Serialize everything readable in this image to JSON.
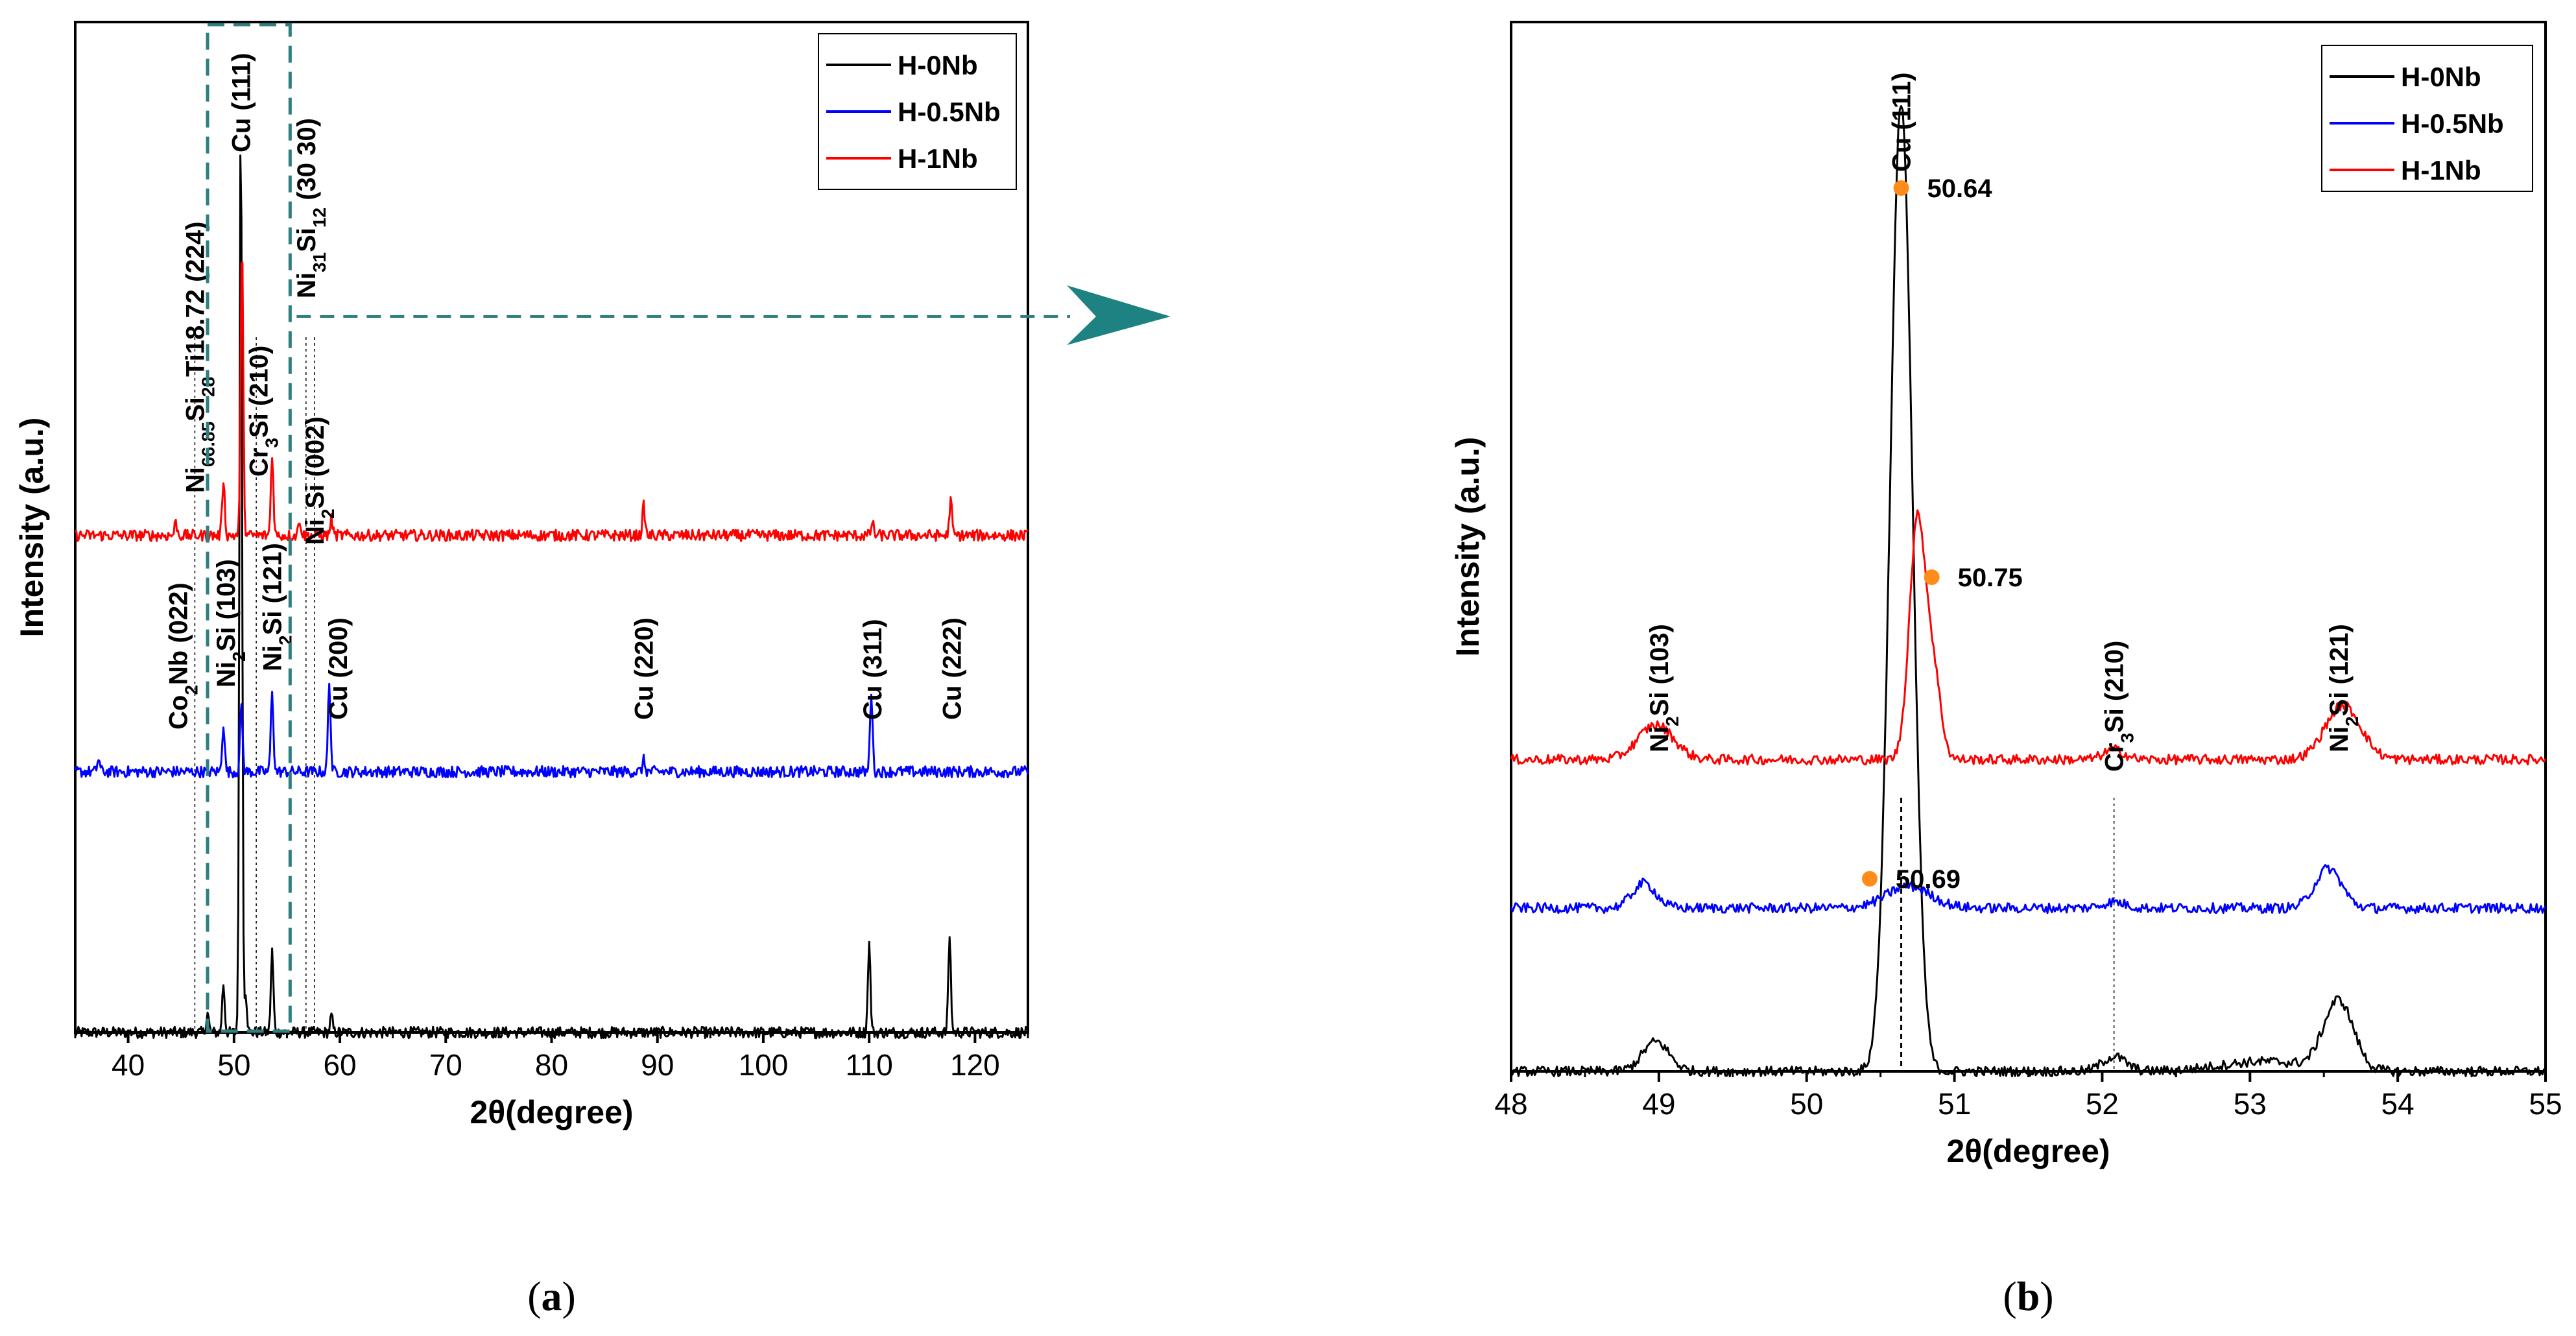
{
  "chart_data": [
    {
      "type": "line",
      "panel_label_parts": [
        "(",
        "a",
        ")"
      ],
      "xlabel": "2θ(degree)",
      "ylabel": "Intensity (a.u.)",
      "xlim": [
        35,
        125
      ],
      "xticks": [
        40,
        50,
        60,
        70,
        80,
        90,
        100,
        110,
        120
      ],
      "legend": {
        "position": "top-right",
        "entries": [
          "H-0Nb",
          "H-0.5Nb",
          "H-1Nb"
        ]
      },
      "colors": {
        "H-0Nb": "#000000",
        "H-0.5Nb": "#0000ff",
        "H-1Nb": "#ff0000"
      },
      "series": [
        {
          "name": "H-0Nb",
          "baseline": 0.0,
          "peaks": [
            [
              47.5,
              1.2
            ],
            [
              49.0,
              3.0
            ],
            [
              50.64,
              57.0
            ],
            [
              51.1,
              2.5
            ],
            [
              53.6,
              5.0
            ],
            [
              59.2,
              1.0
            ],
            [
              110.0,
              5.5
            ],
            [
              117.6,
              6.0
            ]
          ]
        },
        {
          "name": "H-0.5Nb",
          "baseline": 16.0,
          "peaks": [
            [
              37.2,
              0.8
            ],
            [
              49.0,
              3.0
            ],
            [
              50.69,
              4.0
            ],
            [
              53.6,
              5.0
            ],
            [
              59.0,
              5.5
            ],
            [
              88.7,
              0.7
            ],
            [
              110.2,
              5.0
            ]
          ]
        },
        {
          "name": "H-1Nb",
          "baseline": 30.5,
          "peaks": [
            [
              44.5,
              0.8
            ],
            [
              49.0,
              3.5
            ],
            [
              50.75,
              18.0
            ],
            [
              53.6,
              5.0
            ],
            [
              56.2,
              1.0
            ],
            [
              59.2,
              1.0
            ],
            [
              88.7,
              1.8
            ],
            [
              110.3,
              0.8
            ],
            [
              117.7,
              2.2
            ]
          ]
        }
      ],
      "annotations": [
        {
          "x": 44.7,
          "parts": [
            [
              "Co",
              "n"
            ],
            [
              "2",
              "sub"
            ],
            [
              "Nb (022)",
              "n"
            ]
          ]
        },
        {
          "x": 46.3,
          "parts": [
            [
              "Ni",
              "n"
            ],
            [
              "66.85",
              "sub"
            ],
            [
              "Si",
              "n"
            ],
            [
              "28",
              "sub"
            ],
            [
              "Ti18.72 (224)",
              "n"
            ]
          ]
        },
        {
          "x": 49.2,
          "parts": [
            [
              "Ni",
              "n"
            ],
            [
              "2",
              "sub"
            ],
            [
              "Si (103)",
              "n"
            ]
          ]
        },
        {
          "x": 50.64,
          "parts": [
            [
              "Cu (111)",
              "n"
            ]
          ]
        },
        {
          "x": 52.3,
          "parts": [
            [
              "Cr",
              "n"
            ],
            [
              "3",
              "sub"
            ],
            [
              "Si (210)",
              "n"
            ]
          ]
        },
        {
          "x": 53.6,
          "parts": [
            [
              "Ni",
              "n"
            ],
            [
              "2",
              "sub"
            ],
            [
              "Si (121)",
              "n"
            ]
          ]
        },
        {
          "x": 56.8,
          "parts": [
            [
              "Ni",
              "n"
            ],
            [
              "31",
              "sub"
            ],
            [
              "Si",
              "n"
            ],
            [
              "12",
              "sub"
            ],
            [
              " (30 30)",
              "n"
            ]
          ]
        },
        {
          "x": 57.6,
          "parts": [
            [
              "Ni",
              "n"
            ],
            [
              "2",
              "sub"
            ],
            [
              "Si (002)",
              "n"
            ]
          ]
        },
        {
          "x": 59.8,
          "parts": [
            [
              "Cu (200)",
              "n"
            ]
          ]
        },
        {
          "x": 88.7,
          "parts": [
            [
              "Cu (220)",
              "n"
            ]
          ]
        },
        {
          "x": 110.3,
          "parts": [
            [
              "Cu (311)",
              "n"
            ]
          ]
        },
        {
          "x": 117.8,
          "parts": [
            [
              "Cu (222)",
              "n"
            ]
          ]
        }
      ],
      "reference_lines": [
        46.3,
        52.1,
        56.8,
        57.6
      ],
      "zoom_box_x": [
        47.5,
        55.3
      ]
    },
    {
      "type": "line",
      "panel_label_parts": [
        "(",
        "b",
        ")"
      ],
      "xlabel": "2θ(degree)",
      "ylabel": "Intensity (a.u.)",
      "xlim": [
        48,
        55
      ],
      "xticks": [
        48,
        49,
        50,
        51,
        52,
        53,
        54,
        55
      ],
      "legend": {
        "position": "top-right",
        "entries": [
          "H-0Nb",
          "H-0.5Nb",
          "H-1Nb"
        ]
      },
      "colors": {
        "H-0Nb": "#000000",
        "H-0.5Nb": "#0000ff",
        "H-1Nb": "#ff0000"
      },
      "marker_color": "#ff8c1a",
      "series": [
        {
          "name": "H-0Nb",
          "baseline": 0.0,
          "peaks": [
            [
              48.98,
              3.0,
              0.09
            ],
            [
              50.64,
              98.0,
              0.075
            ],
            [
              52.08,
              1.5,
              0.08
            ],
            [
              53.6,
              7.0,
              0.1
            ],
            [
              53.1,
              1.0,
              0.3
            ]
          ]
        },
        {
          "name": "H-0.5Nb",
          "baseline": 16.5,
          "peaks": [
            [
              48.9,
              2.5,
              0.08
            ],
            [
              50.69,
              2.2,
              0.15
            ],
            [
              52.08,
              0.6,
              0.08
            ],
            [
              53.53,
              4.0,
              0.09
            ]
          ]
        },
        {
          "name": "H-1Nb",
          "baseline": 31.5,
          "peaks": [
            [
              48.98,
              3.5,
              0.12
            ],
            [
              50.75,
              24.0,
              0.055
            ],
            [
              50.86,
              8.0,
              0.05
            ],
            [
              52.08,
              1.0,
              0.07
            ],
            [
              53.63,
              5.5,
              0.12
            ]
          ]
        }
      ],
      "peak_markers": [
        {
          "series": "H-0Nb",
          "x": 50.64,
          "label": "50.64"
        },
        {
          "series": "H-1Nb",
          "x": 50.75,
          "label": "50.75"
        },
        {
          "series": "H-0.5Nb",
          "x": 50.69,
          "label": "50.69"
        }
      ],
      "annotations": [
        {
          "x": 49.0,
          "parts": [
            [
              "Ni",
              "n"
            ],
            [
              "2",
              "sub"
            ],
            [
              "Si (103)",
              "n"
            ]
          ]
        },
        {
          "x": 50.64,
          "parts": [
            [
              "Cu (111)",
              "n"
            ]
          ]
        },
        {
          "x": 52.08,
          "parts": [
            [
              "Cr",
              "n"
            ],
            [
              "3",
              "sub"
            ],
            [
              "Si (210)",
              "n"
            ]
          ]
        },
        {
          "x": 53.6,
          "parts": [
            [
              "Ni",
              "n"
            ],
            [
              "2",
              "sub"
            ],
            [
              "Si (121)",
              "n"
            ]
          ]
        }
      ],
      "reference_lines": [
        50.64,
        52.08
      ]
    }
  ]
}
